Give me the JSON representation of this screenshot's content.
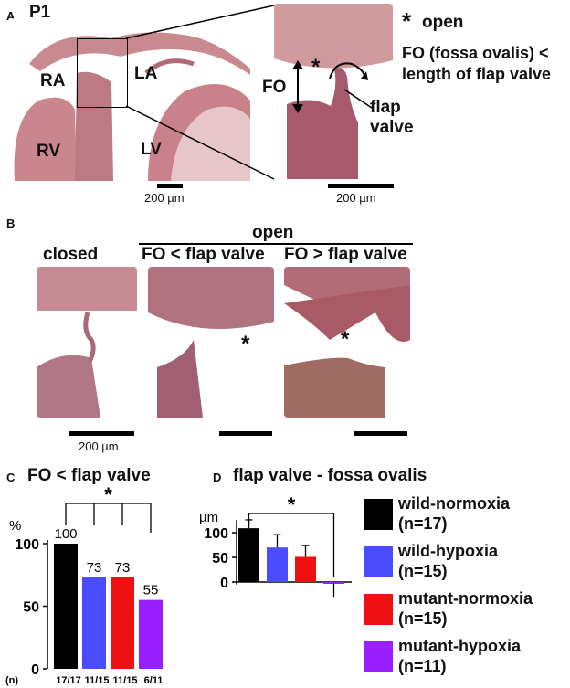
{
  "panelA": {
    "letter": "A",
    "title": "P1",
    "labels": {
      "ra": "RA",
      "la": "LA",
      "rv": "RV",
      "lv": "LV",
      "fo": "FO",
      "flap_line1": "flap",
      "flap_line2": "valve"
    },
    "scale_left": "200 µm",
    "scale_right": "200 µm",
    "legend_star": "*",
    "legend_open": "open",
    "legend_line1": "FO (fossa ovalis) <",
    "legend_line2": "length of flap valve"
  },
  "panelB": {
    "letter": "B",
    "open_header": "open",
    "col1": "closed",
    "col2": "FO < flap valve",
    "col3": "FO > flap valve",
    "star": "*",
    "scale": "200 µm"
  },
  "panelC": {
    "letter": "C",
    "title": "FO < flap valve",
    "star": "*",
    "n_label": "(n)",
    "chart_data": {
      "type": "bar",
      "title": "FO < flap valve",
      "ylabel": "%",
      "ylim": [
        0,
        100
      ],
      "yticks": [
        0,
        50,
        100
      ],
      "categories": [
        "wild-normoxia",
        "wild-hypoxia",
        "mutant-normoxia",
        "mutant-hypoxia"
      ],
      "values": [
        100,
        73,
        73,
        55
      ],
      "value_labels": [
        "100",
        "73",
        "73",
        "55"
      ],
      "n": [
        "17/17",
        "11/15",
        "11/15",
        "6/11"
      ],
      "colors": [
        "#000000",
        "#4b4bff",
        "#ee1111",
        "#9a1fff"
      ],
      "significance": "*"
    }
  },
  "panelD": {
    "letter": "D",
    "title": "flap valve - fossa ovalis",
    "star": "*",
    "chart_data": {
      "type": "bar",
      "title": "flap valve - fossa ovalis",
      "ylabel": "µm",
      "ylim": [
        -30,
        130
      ],
      "yticks": [
        0,
        50,
        100
      ],
      "categories": [
        "wild-normoxia",
        "wild-hypoxia",
        "mutant-normoxia",
        "mutant-hypoxia"
      ],
      "values": [
        109,
        70,
        51,
        -3
      ],
      "errors": [
        17,
        26,
        23,
        27
      ],
      "colors": [
        "#000000",
        "#4b4bff",
        "#ee1111",
        "#9a1fff"
      ],
      "significance": "*"
    }
  },
  "legend": {
    "items": [
      {
        "name": "wild-normoxia",
        "n": "(n=17)",
        "color": "#000000"
      },
      {
        "name": "wild-hypoxia",
        "n": "(n=15)",
        "color": "#4b4bff"
      },
      {
        "name": "mutant-normoxia",
        "n": "(n=15)",
        "color": "#ee1111"
      },
      {
        "name": "mutant-hypoxia",
        "n": "(n=11)",
        "color": "#9a1fff"
      }
    ]
  }
}
